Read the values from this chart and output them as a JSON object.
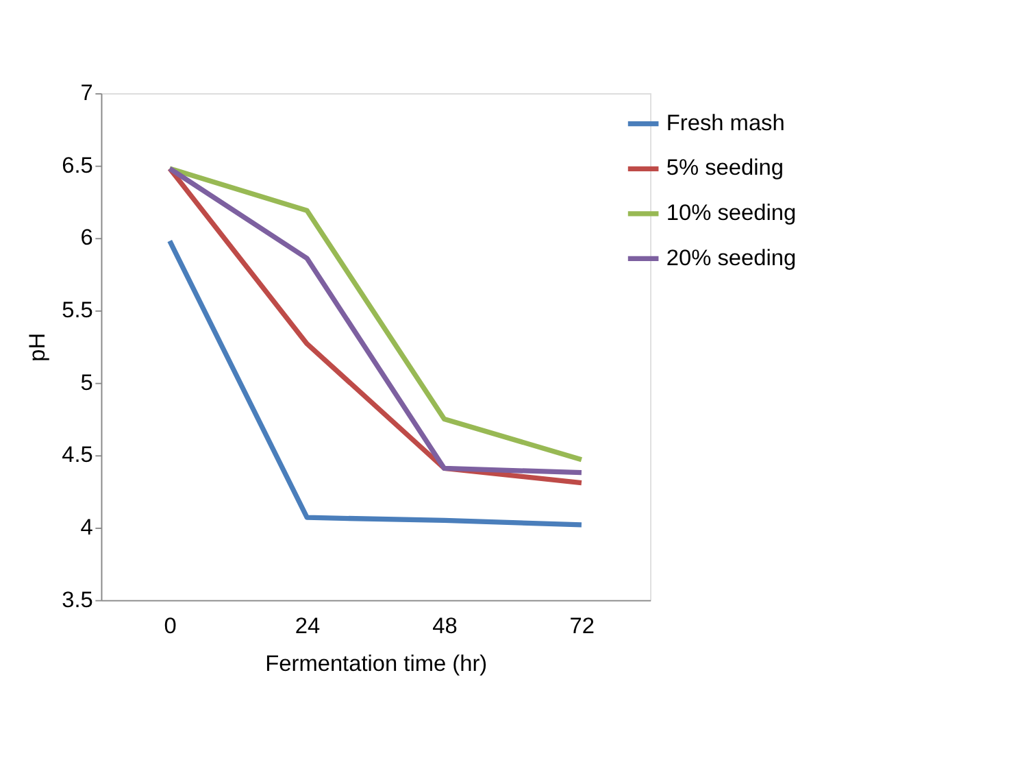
{
  "chart_data": {
    "type": "line",
    "xlabel": "Fermentation time (hr)",
    "ylabel": "pH",
    "categories": [
      "0",
      "24",
      "48",
      "72"
    ],
    "series": [
      {
        "name": "Fresh mash",
        "color": "#4a7ebb",
        "values": [
          5.98,
          4.07,
          4.05,
          4.02
        ]
      },
      {
        "name": "5% seeding",
        "color": "#be4b48",
        "values": [
          6.48,
          5.27,
          4.41,
          4.31
        ]
      },
      {
        "name": "10% seeding",
        "color": "#98b954",
        "values": [
          6.48,
          6.19,
          4.75,
          4.47
        ]
      },
      {
        "name": "20% seeding",
        "color": "#7d60a0",
        "values": [
          6.48,
          5.86,
          4.41,
          4.38
        ]
      }
    ],
    "ylim": [
      3.5,
      7
    ],
    "yticks": [
      3.5,
      4,
      4.5,
      5,
      5.5,
      6,
      6.5,
      7
    ],
    "grid": false,
    "legend": "top right",
    "marker": "none",
    "line_style": "solid"
  }
}
